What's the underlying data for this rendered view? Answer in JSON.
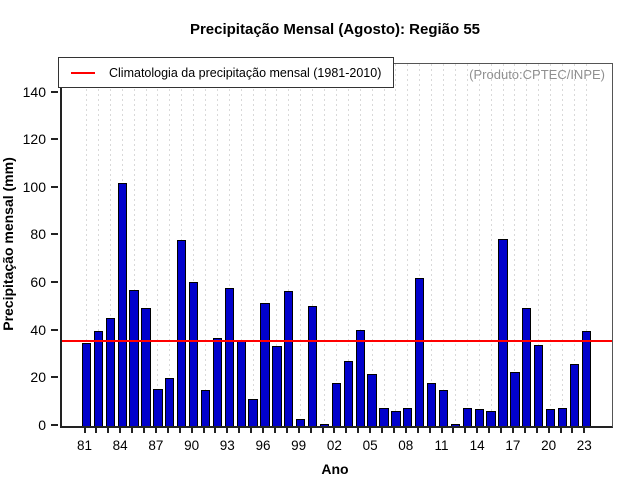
{
  "title": "Precipitação Mensal (Agosto): Região 55",
  "watermark": "(Produto:CPTEC/INPE)",
  "legend": {
    "label": "Climatologia da precipitação mensal (1981-2010)",
    "line_color": "#ff0000"
  },
  "colors": {
    "bar": "#0101cc",
    "bar_border": "#000000",
    "climatology_line": "#ff0000",
    "watermark_text": "#909090",
    "gridline": "#d9d9d9"
  },
  "chart_data": {
    "type": "bar",
    "title": "Precipitação Mensal (Agosto): Região 55",
    "xlabel": "Ano",
    "ylabel": "Precipitação mensal (mm)",
    "ylim": [
      0,
      152
    ],
    "yticks": [
      0,
      20,
      40,
      60,
      80,
      100,
      120,
      140
    ],
    "grid": "vertical-dotted-per-year",
    "legend_position": "top-left",
    "years": [
      1981,
      1982,
      1983,
      1984,
      1985,
      1986,
      1987,
      1988,
      1989,
      1990,
      1991,
      1992,
      1993,
      1994,
      1995,
      1996,
      1997,
      1998,
      1999,
      2000,
      2001,
      2002,
      2003,
      2004,
      2005,
      2006,
      2007,
      2008,
      2009,
      2010,
      2011,
      2012,
      2013,
      2014,
      2015,
      2016,
      2017,
      2018,
      2019,
      2020,
      2021,
      2022,
      2023
    ],
    "values": [
      35,
      40,
      45.5,
      102,
      57,
      49.5,
      15.5,
      20,
      78,
      60.5,
      15,
      37,
      58,
      35.5,
      11.5,
      51.5,
      33.5,
      56.5,
      3,
      50.5,
      1,
      18,
      27.5,
      40.5,
      22,
      7.5,
      6.5,
      7.5,
      62,
      18,
      15,
      1,
      7.5,
      7,
      6.5,
      78.5,
      22.5,
      49.5,
      34,
      7,
      7.5,
      26,
      40
    ],
    "xtick_label_every": 3,
    "xtick_labels": [
      "81",
      "84",
      "87",
      "90",
      "93",
      "96",
      "99",
      "02",
      "05",
      "08",
      "11",
      "14",
      "17",
      "20",
      "23"
    ],
    "climatology_value": 35.5,
    "climatology_label": "Climatologia da precipitação mensal (1981-2010)"
  }
}
